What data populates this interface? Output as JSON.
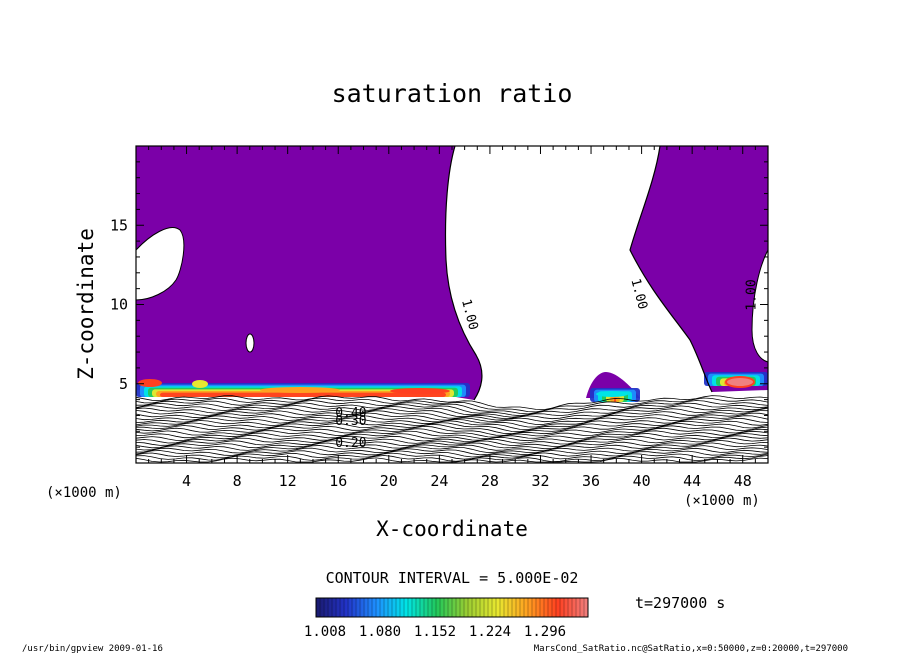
{
  "chart_data": {
    "type": "contour",
    "title": "saturation ratio",
    "xlabel": "X-coordinate",
    "ylabel": "Z-coordinate",
    "x_units_left": "(×1000 m)",
    "x_units_right": "(×1000 m)",
    "xlim": [
      0,
      50
    ],
    "ylim": [
      0,
      20
    ],
    "xticks": [
      4,
      8,
      12,
      16,
      20,
      24,
      28,
      32,
      36,
      40,
      44,
      48
    ],
    "yticks": [
      5,
      10,
      15
    ],
    "contour_interval_text": "CONTOUR INTERVAL = 5.000E-02",
    "contour_labels": [
      {
        "text": "1.00",
        "x": 26.1,
        "z": 9.3
      },
      {
        "text": "1.00",
        "x": 39.5,
        "z": 10.6
      },
      {
        "text": "1.00",
        "x": 49.0,
        "z": 10.6
      },
      {
        "text": "0.40",
        "x": 17.0,
        "z": 2.9
      },
      {
        "text": "0.30",
        "x": 17.0,
        "z": 2.4
      },
      {
        "text": "0.20",
        "x": 17.0,
        "z": 1.0
      }
    ],
    "colorbar": {
      "ticks": [
        "1.008",
        "1.080",
        "1.152",
        "1.224",
        "1.296"
      ],
      "colors": [
        "#1a1a6e",
        "#2233c8",
        "#1e90ff",
        "#00e5e5",
        "#22c85a",
        "#9acd32",
        "#e8e830",
        "#ffa020",
        "#ff4020",
        "#f08080"
      ]
    },
    "time_label": "t=297000 s",
    "saturated_color": "#7b00a8",
    "unsaturated_color": "#ffffff"
  },
  "footer": {
    "left": "/usr/bin/gpview   2009-01-16",
    "right": "MarsCond_SatRatio.nc@SatRatio,x=0:50000,z=0:20000,t=297000"
  }
}
